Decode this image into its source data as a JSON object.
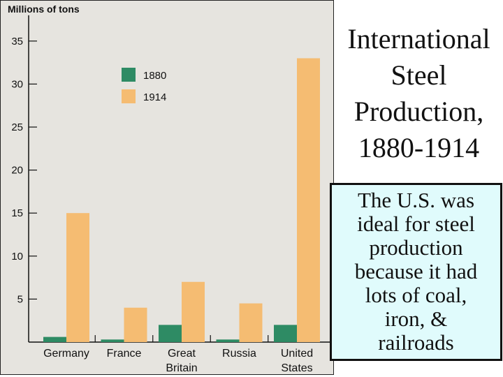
{
  "colors": {
    "series_1880": "#2e8b64",
    "series_1914": "#f5bc72",
    "panel_bg": "#e6e4df",
    "note_bg": "#e0fbfc"
  },
  "title_lines": [
    "International",
    "Steel",
    "Production,",
    "1880-1914"
  ],
  "note_lines": [
    "The U.S. was",
    "ideal for steel",
    "production",
    "because it had",
    "lots of coal,",
    "iron, &",
    "railroads"
  ],
  "chart_data": {
    "type": "bar",
    "ylabel": "Millions of tons",
    "ylim": [
      0,
      38
    ],
    "yticks": [
      5,
      10,
      15,
      20,
      25,
      30,
      35
    ],
    "categories": [
      [
        "Germany"
      ],
      [
        "France"
      ],
      [
        "Great",
        "Britain"
      ],
      [
        "Russia"
      ],
      [
        "United",
        "States"
      ]
    ],
    "series": [
      {
        "name": "1880",
        "values": [
          0.6,
          0.3,
          2.0,
          0.3,
          2.0
        ]
      },
      {
        "name": "1914",
        "values": [
          15.0,
          4.0,
          7.0,
          4.5,
          33.0
        ]
      }
    ],
    "legend_position": "top-left",
    "grid": false
  }
}
